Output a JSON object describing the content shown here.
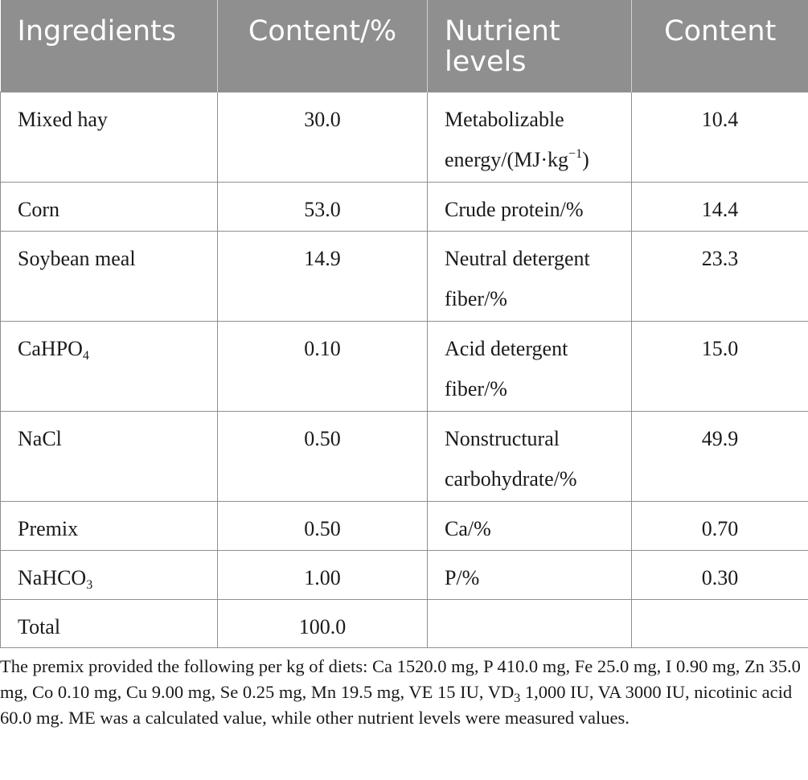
{
  "table": {
    "headers": [
      "Ingredients",
      "Content/%",
      "Nutrient levels",
      "Content"
    ],
    "rows": [
      {
        "ingredient": "Mixed hay",
        "ingredient_sub": "",
        "content": "30.0",
        "nutrient": "Metabolizable energy/(MJ·kg",
        "nutrient_sup": "−1",
        "nutrient_tail": ")",
        "nutrient_content": "10.4"
      },
      {
        "ingredient": "Corn",
        "ingredient_sub": "",
        "content": "53.0",
        "nutrient": "Crude protein/%",
        "nutrient_sup": "",
        "nutrient_tail": "",
        "nutrient_content": "14.4"
      },
      {
        "ingredient": "Soybean meal",
        "ingredient_sub": "",
        "content": "14.9",
        "nutrient": "Neutral detergent fiber/%",
        "nutrient_sup": "",
        "nutrient_tail": "",
        "nutrient_content": "23.3"
      },
      {
        "ingredient": "CaHPO",
        "ingredient_sub": "4",
        "content": "0.10",
        "nutrient": "Acid detergent fiber/%",
        "nutrient_sup": "",
        "nutrient_tail": "",
        "nutrient_content": "15.0"
      },
      {
        "ingredient": "NaCl",
        "ingredient_sub": "",
        "content": "0.50",
        "nutrient": "Nonstructural carbohydrate/%",
        "nutrient_sup": "",
        "nutrient_tail": "",
        "nutrient_content": "49.9"
      },
      {
        "ingredient": "Premix",
        "ingredient_sub": "",
        "content": "0.50",
        "nutrient": "Ca/%",
        "nutrient_sup": "",
        "nutrient_tail": "",
        "nutrient_content": "0.70"
      },
      {
        "ingredient": "NaHCO",
        "ingredient_sub": "3",
        "content": "1.00",
        "nutrient": "P/%",
        "nutrient_sup": "",
        "nutrient_tail": "",
        "nutrient_content": "0.30"
      },
      {
        "ingredient": "Total",
        "ingredient_sub": "",
        "content": "100.0",
        "nutrient": "",
        "nutrient_sup": "",
        "nutrient_tail": "",
        "nutrient_content": ""
      }
    ]
  },
  "footnote": {
    "part1": "The premix provided the following per kg of diets: Ca 1520.0 mg, P 410.0 mg, Fe 25.0 mg, I 0.90 mg, Zn 35.0 mg, Co 0.10 mg, Cu 9.00 mg, Se 0.25 mg, Mn 19.5 mg, VE 15 IU, VD",
    "sub": "3",
    "part2": " 1,000 IU, VA 3000 IU, nicotinic acid 60.0 mg. ME was a calculated value, while other nutrient levels were measured values."
  },
  "colors": {
    "header_bg": "#8f8f8f",
    "header_text": "#ffffff",
    "border": "#8f8f8f",
    "text": "#1a1a1a"
  }
}
